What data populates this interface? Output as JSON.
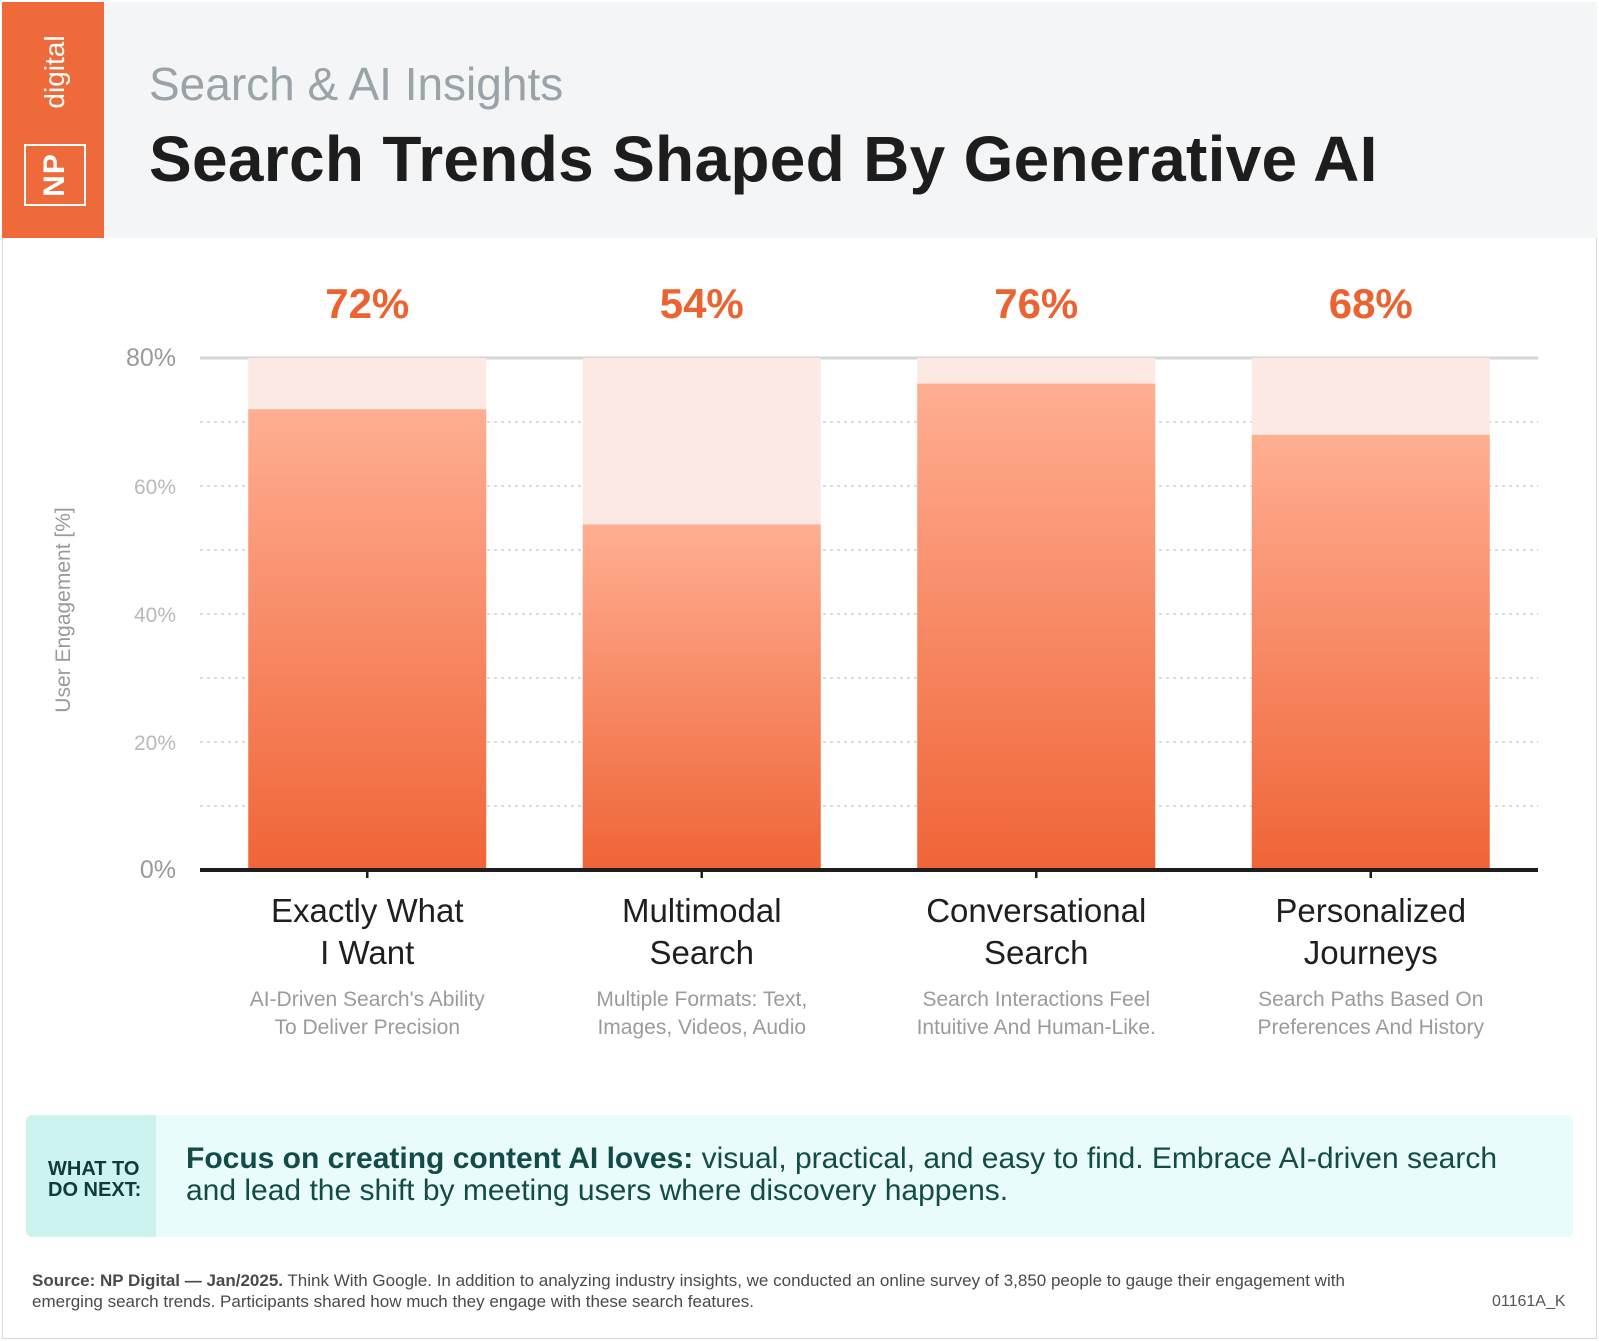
{
  "brand": {
    "logo_np": "NP",
    "logo_word": "digital",
    "accent": "#ee6a3a"
  },
  "header": {
    "kicker": "Search & AI Insights",
    "title": "Search Trends Shaped By Generative AI"
  },
  "chart_data": {
    "type": "bar",
    "ylabel": "User Engagement [%]",
    "ylim": [
      0,
      80
    ],
    "yticks": [
      "0%",
      "20%",
      "40%",
      "60%",
      "80%"
    ],
    "grid": true,
    "categories": [
      "Exactly What I Want",
      "Multimodal Search",
      "Conversational Search",
      "Personalized Journeys"
    ],
    "category_lines": [
      [
        "Exactly What",
        "I Want"
      ],
      [
        "Multimodal",
        "Search"
      ],
      [
        "Conversational",
        "Search"
      ],
      [
        "Personalized",
        "Journeys"
      ]
    ],
    "descriptions": [
      [
        "AI-Driven Search's Ability",
        "To Deliver Precision"
      ],
      [
        "Multiple Formats: Text,",
        "Images, Videos, Audio"
      ],
      [
        "Search Interactions Feel",
        "Intuitive And Human-Like."
      ],
      [
        "Search Paths Based On",
        "Preferences And History"
      ]
    ],
    "values": [
      72,
      54,
      76,
      68
    ],
    "value_labels": [
      "72%",
      "54%",
      "76%",
      "68%"
    ],
    "colors": {
      "bar_top": "#ffae92",
      "bar_bottom": "#f06437",
      "bar_bg": "#fde9e3",
      "label": "#ec6332"
    }
  },
  "callout": {
    "tag": "WHAT TO DO NEXT:",
    "bold": "Focus on creating content AI loves:",
    "text": " visual, practical, and easy to find. Embrace AI-driven search and lead the shift by meeting users where discovery happens."
  },
  "footer": {
    "source_bold": "Source:  NP Digital — Jan/2025.",
    "source_text": " Think With Google. In addition to analyzing industry insights, we conducted an online survey of 3,850 people to gauge their engagement with emerging search trends. Participants shared how much they engage with these search features.",
    "code": "01161A_K"
  }
}
